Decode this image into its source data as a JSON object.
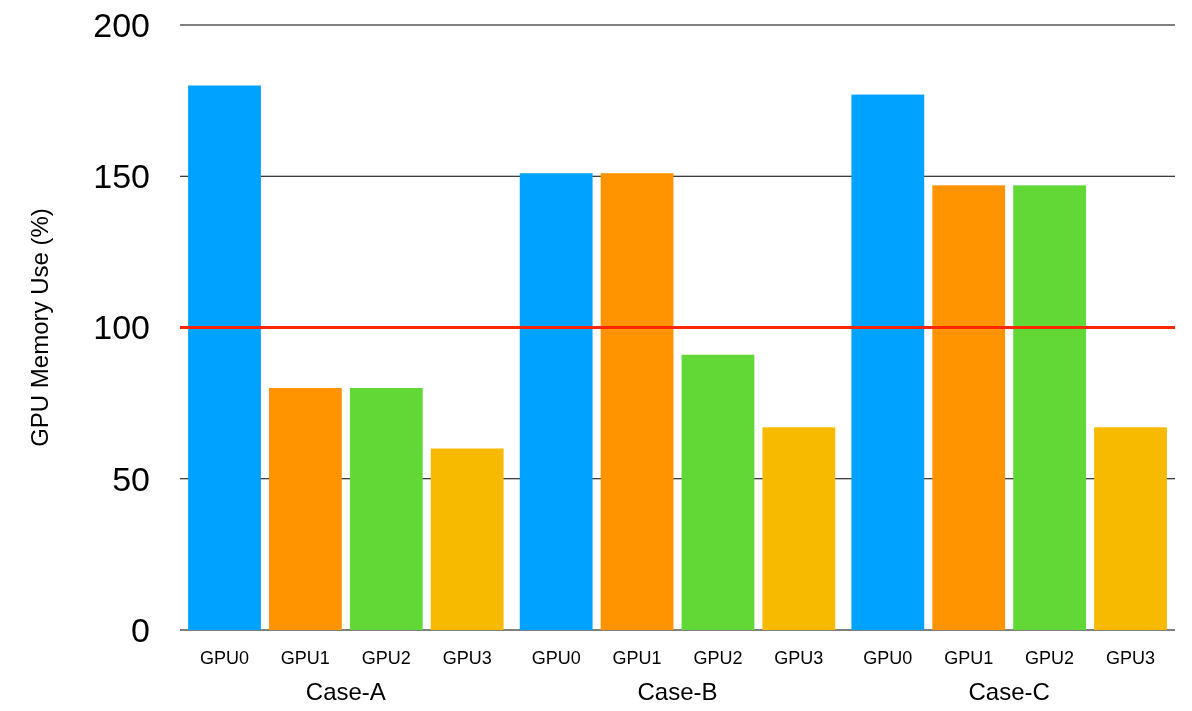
{
  "chart_data": {
    "type": "bar",
    "ylabel": "GPU Memory Use (%)",
    "categories": [
      "Case-A",
      "Case-B",
      "Case-C"
    ],
    "series": [
      {
        "name": "GPU0",
        "color": "#00a2ff",
        "values": [
          180,
          151,
          177
        ]
      },
      {
        "name": "GPU1",
        "color": "#ff9300",
        "values": [
          80,
          151,
          147
        ]
      },
      {
        "name": "GPU2",
        "color": "#61d836",
        "values": [
          80,
          91,
          147
        ]
      },
      {
        "name": "GPU3",
        "color": "#f8ba00",
        "values": [
          60,
          67,
          67
        ]
      }
    ],
    "ylim": [
      0,
      200
    ],
    "yticks": [
      0,
      50,
      100,
      150,
      200
    ],
    "grid": "y",
    "ref_lines": [
      {
        "axis": "y",
        "value": 100,
        "color": "#ff2600"
      }
    ]
  }
}
